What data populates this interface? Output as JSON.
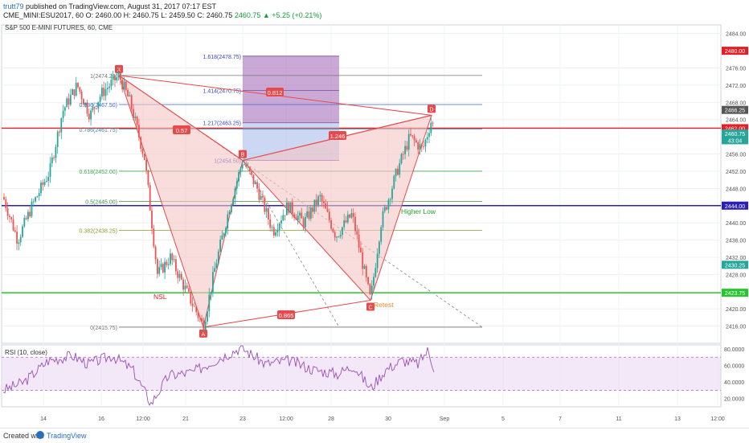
{
  "header": {
    "user": "trutt79",
    "published": "published on TradingView.com, August 31, 2017 07:17 EST",
    "symbol": "CME_MINI:ESU2017, 60",
    "quote_open": "O: 2460.00",
    "quote_high": "H: 2460.75",
    "quote_low": "L: 2459.50",
    "quote_close": "C: 2460.75",
    "close": "2460.75",
    "change": "▲ +5.25 (+0.21%)"
  },
  "legend": {
    "title": "S&P 500 E-MINI FUTURES, 60, CME",
    "rsi": "RSI (10, close)"
  },
  "footer": {
    "created": "Created with",
    "brand": "TradingView"
  },
  "colors": {
    "pattern_fill": "#f5c6c4",
    "pattern_line": "#e8494a",
    "fib_box": "#9f63b4",
    "rsi_line": "#9a4fb8",
    "green_line": "#27c62d",
    "blue_line": "#2a1fb8",
    "red_line": "#e41e24"
  },
  "chart_data": {
    "type": "candlestick",
    "title": "S&P 500 E-MINI FUTURES, 60, CME",
    "ylim": [
      2412,
      2486
    ],
    "x_ticks": [
      "14",
      "16",
      "12:00",
      "21",
      "23",
      "12:00",
      "28",
      "30",
      "Sep",
      "5",
      "7",
      "11",
      "13",
      "12:00"
    ],
    "y_ticks": [
      "2484.00",
      "2476.00",
      "2472.00",
      "2468.00",
      "2464.00",
      "2456.00",
      "2452.00",
      "2448.00",
      "2440.00",
      "2436.00",
      "2432.00",
      "2428.00",
      "2420.00",
      "2416.00"
    ],
    "price_badges": [
      {
        "label": "2480.00",
        "value": 2480.0,
        "color": "#e41e24"
      },
      {
        "label": "2466.25",
        "value": 2466.25,
        "color": "#555555"
      },
      {
        "label": "2462.00",
        "value": 2462.0,
        "color": "#e41e24"
      },
      {
        "label": "2460.75",
        "value": 2460.75,
        "color": "#26a69a"
      },
      {
        "label": "43:04",
        "value": 2459.2,
        "color": "#26a69a"
      },
      {
        "label": "2444.00",
        "value": 2444.0,
        "color": "#2a1fb8"
      },
      {
        "label": "2430.25",
        "value": 2430.25,
        "color": "#26a69a"
      },
      {
        "label": "2423.75",
        "value": 2423.75,
        "color": "#27c62d"
      }
    ],
    "horizontal_lines": [
      {
        "value": 2462.0,
        "color": "#e41e24"
      },
      {
        "value": 2444.0,
        "color": "#2a1fb8"
      },
      {
        "value": 2423.75,
        "color": "#27c62d"
      }
    ],
    "pattern_points": [
      {
        "label": "X",
        "value": 2474.25
      },
      {
        "label": "A",
        "value": 2415.75
      },
      {
        "label": "B",
        "value": 2454.5
      },
      {
        "label": "C",
        "value": 2422.0
      },
      {
        "label": "D",
        "value": 2465.0
      }
    ],
    "ratios": [
      "0.57",
      "0.812",
      "1.246",
      "0.865"
    ],
    "fib_levels": [
      {
        "label": "1(2474.25)",
        "value": 2474.25,
        "color": "#777777"
      },
      {
        "label": "0.886(2467.50)",
        "value": 2467.5,
        "color": "#3b66c8"
      },
      {
        "label": "0.786(2461.75)",
        "value": 2461.75,
        "color": "#3b8fa8"
      },
      {
        "label": "0.618(2452.00)",
        "value": 2452.0,
        "color": "#3ea84f"
      },
      {
        "label": "0.5(2445.00)",
        "value": 2445.0,
        "color": "#3b8f3b"
      },
      {
        "label": "0.382(2438.25)",
        "value": 2438.25,
        "color": "#8a9c2a"
      },
      {
        "label": "0(2415.75)",
        "value": 2415.75,
        "color": "#777777"
      }
    ],
    "bc_extensions": [
      {
        "label": "1.618(2478.75)",
        "value": 2478.75
      },
      {
        "label": "1.414(2470.75)",
        "value": 2470.75
      },
      {
        "label": "1.217(2463.25)",
        "value": 2463.25
      },
      {
        "label": "1(2454.50)",
        "value": 2454.5
      }
    ],
    "annotations": [
      {
        "text": "NSL",
        "color": "#e41e24"
      },
      {
        "text": "Higher Low",
        "color": "#27a12d"
      },
      {
        "text": "Retest",
        "color": "#f0882a"
      }
    ],
    "rsi": {
      "title": "RSI (10, close)",
      "ylim": [
        10,
        85
      ],
      "ticks": [
        "80.0000",
        "60.0000",
        "40.0000",
        "20.0000"
      ],
      "levels": [
        70,
        30
      ]
    }
  }
}
